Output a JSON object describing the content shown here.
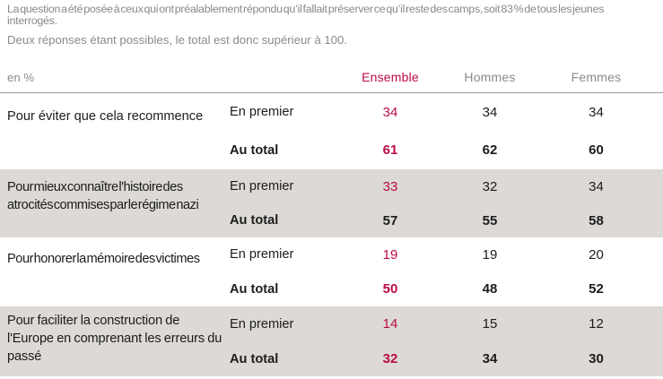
{
  "intro": {
    "line1": "La question a été posée à ceux qui ont préalablement répondu qu’il fallait préserver ce qu’il reste des camps, soit 83 % de tous les jeunes interrogés.",
    "line2": "Deux réponses étant possibles, le total est donc supérieur à 100."
  },
  "table": {
    "unit_label": "en %",
    "columns": [
      "Ensemble",
      "Hommes",
      "Femmes"
    ],
    "row_labels": {
      "first": "En premier",
      "total": "Au total"
    },
    "rows": [
      {
        "label": "Pour éviter que cela recommence",
        "first": {
          "ensemble": "34",
          "hommes": "34",
          "femmes": "34"
        },
        "total": {
          "ensemble": "61",
          "hommes": "62",
          "femmes": "60"
        }
      },
      {
        "label": "Pour mieux connaître l'histoire des atrocités commises par le régime nazi",
        "first": {
          "ensemble": "33",
          "hommes": "32",
          "femmes": "34"
        },
        "total": {
          "ensemble": "57",
          "hommes": "55",
          "femmes": "58"
        }
      },
      {
        "label": "Pour honorer la mémoire des victimes",
        "first": {
          "ensemble": "19",
          "hommes": "19",
          "femmes": "20"
        },
        "total": {
          "ensemble": "50",
          "hommes": "48",
          "femmes": "52"
        }
      },
      {
        "label": "Pour faciliter la construction de l'Europe en comprenant les erreurs du passé",
        "first": {
          "ensemble": "14",
          "hommes": "15",
          "femmes": "12"
        },
        "total": {
          "ensemble": "32",
          "hommes": "34",
          "femmes": "30"
        }
      }
    ]
  },
  "colors": {
    "accent_red": "#bc0c44",
    "alt_row_bg": "#dcd9d6",
    "gray_text": "#8a8a8a"
  }
}
